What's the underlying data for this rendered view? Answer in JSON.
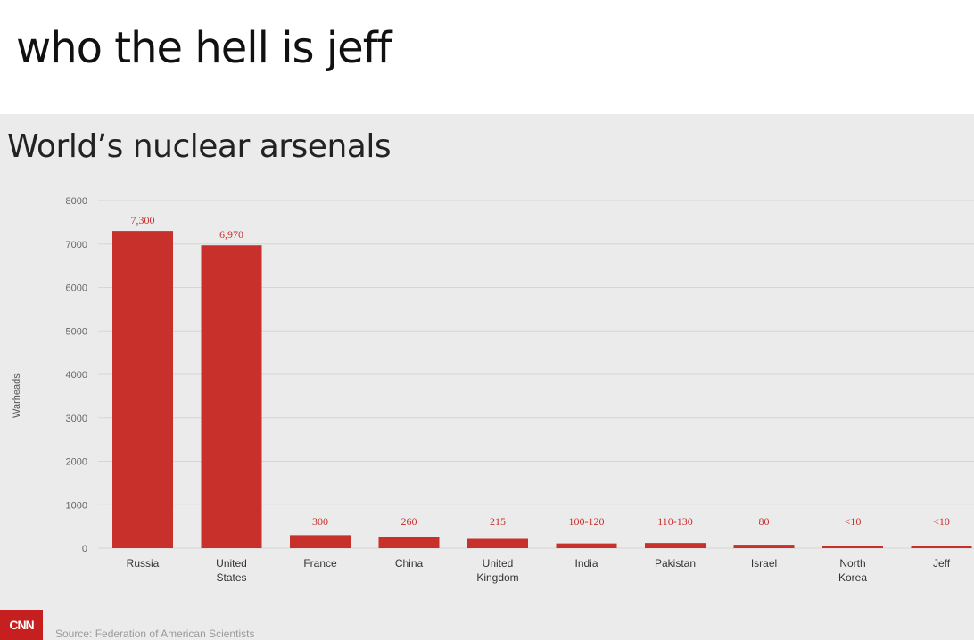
{
  "caption": "who the hell is jeff",
  "footer": {
    "logo": "CNN",
    "source": "Source: Federation of American Scientists"
  },
  "colors": {
    "bar": "#c8302c",
    "grid": "#d6d6d6",
    "panel": "#ebebeb"
  },
  "chart_data": {
    "type": "bar",
    "title": "World’s nuclear arsenals",
    "ylabel": "Warheads",
    "xlabel": "",
    "ylim": [
      0,
      8000
    ],
    "yticks": [
      0,
      1000,
      2000,
      3000,
      4000,
      5000,
      6000,
      7000,
      8000
    ],
    "grid": true,
    "categories": [
      "Russia",
      "United States",
      "France",
      "China",
      "United Kingdom",
      "India",
      "Pakistan",
      "Israel",
      "North Korea",
      "Jeff"
    ],
    "values": [
      7300,
      6970,
      300,
      260,
      215,
      110,
      120,
      80,
      10,
      10
    ],
    "value_labels": [
      "7,300",
      "6,970",
      "300",
      "260",
      "215",
      "100-120",
      "110-130",
      "80",
      "<10",
      "<10"
    ]
  }
}
